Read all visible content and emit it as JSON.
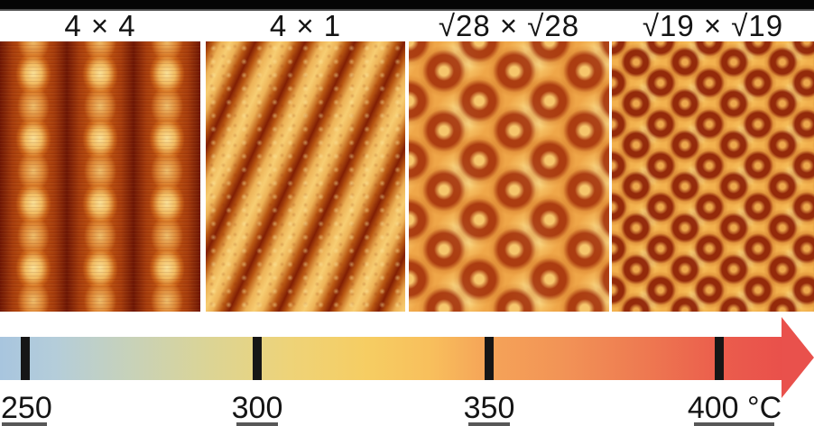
{
  "panels": [
    {
      "label": "4 × 4",
      "pattern": "column-blob-rows"
    },
    {
      "label": "4 × 1",
      "pattern": "diagonal-stripes"
    },
    {
      "label": "√28 × √28",
      "pattern": "hex-dark-rings-large"
    },
    {
      "label": "√19 × √19",
      "pattern": "hex-dark-rings-small"
    }
  ],
  "temperature_scale": {
    "tick_labels": [
      "250",
      "300",
      "350",
      "400 °C"
    ],
    "unit": "°C",
    "colors": {
      "gradient_start_blue": "#a8c5de",
      "gradient_yellow": "#f6cd62",
      "gradient_orange": "#f5a458",
      "gradient_end_red": "#e9504b",
      "arrow_head": "#e9514c",
      "tick": "#161616"
    }
  },
  "palette": {
    "top_bar": "#050505",
    "stm_dark": "#7c1d05",
    "stm_mid": "#d8791f",
    "stm_bright": "#fbd87e"
  }
}
